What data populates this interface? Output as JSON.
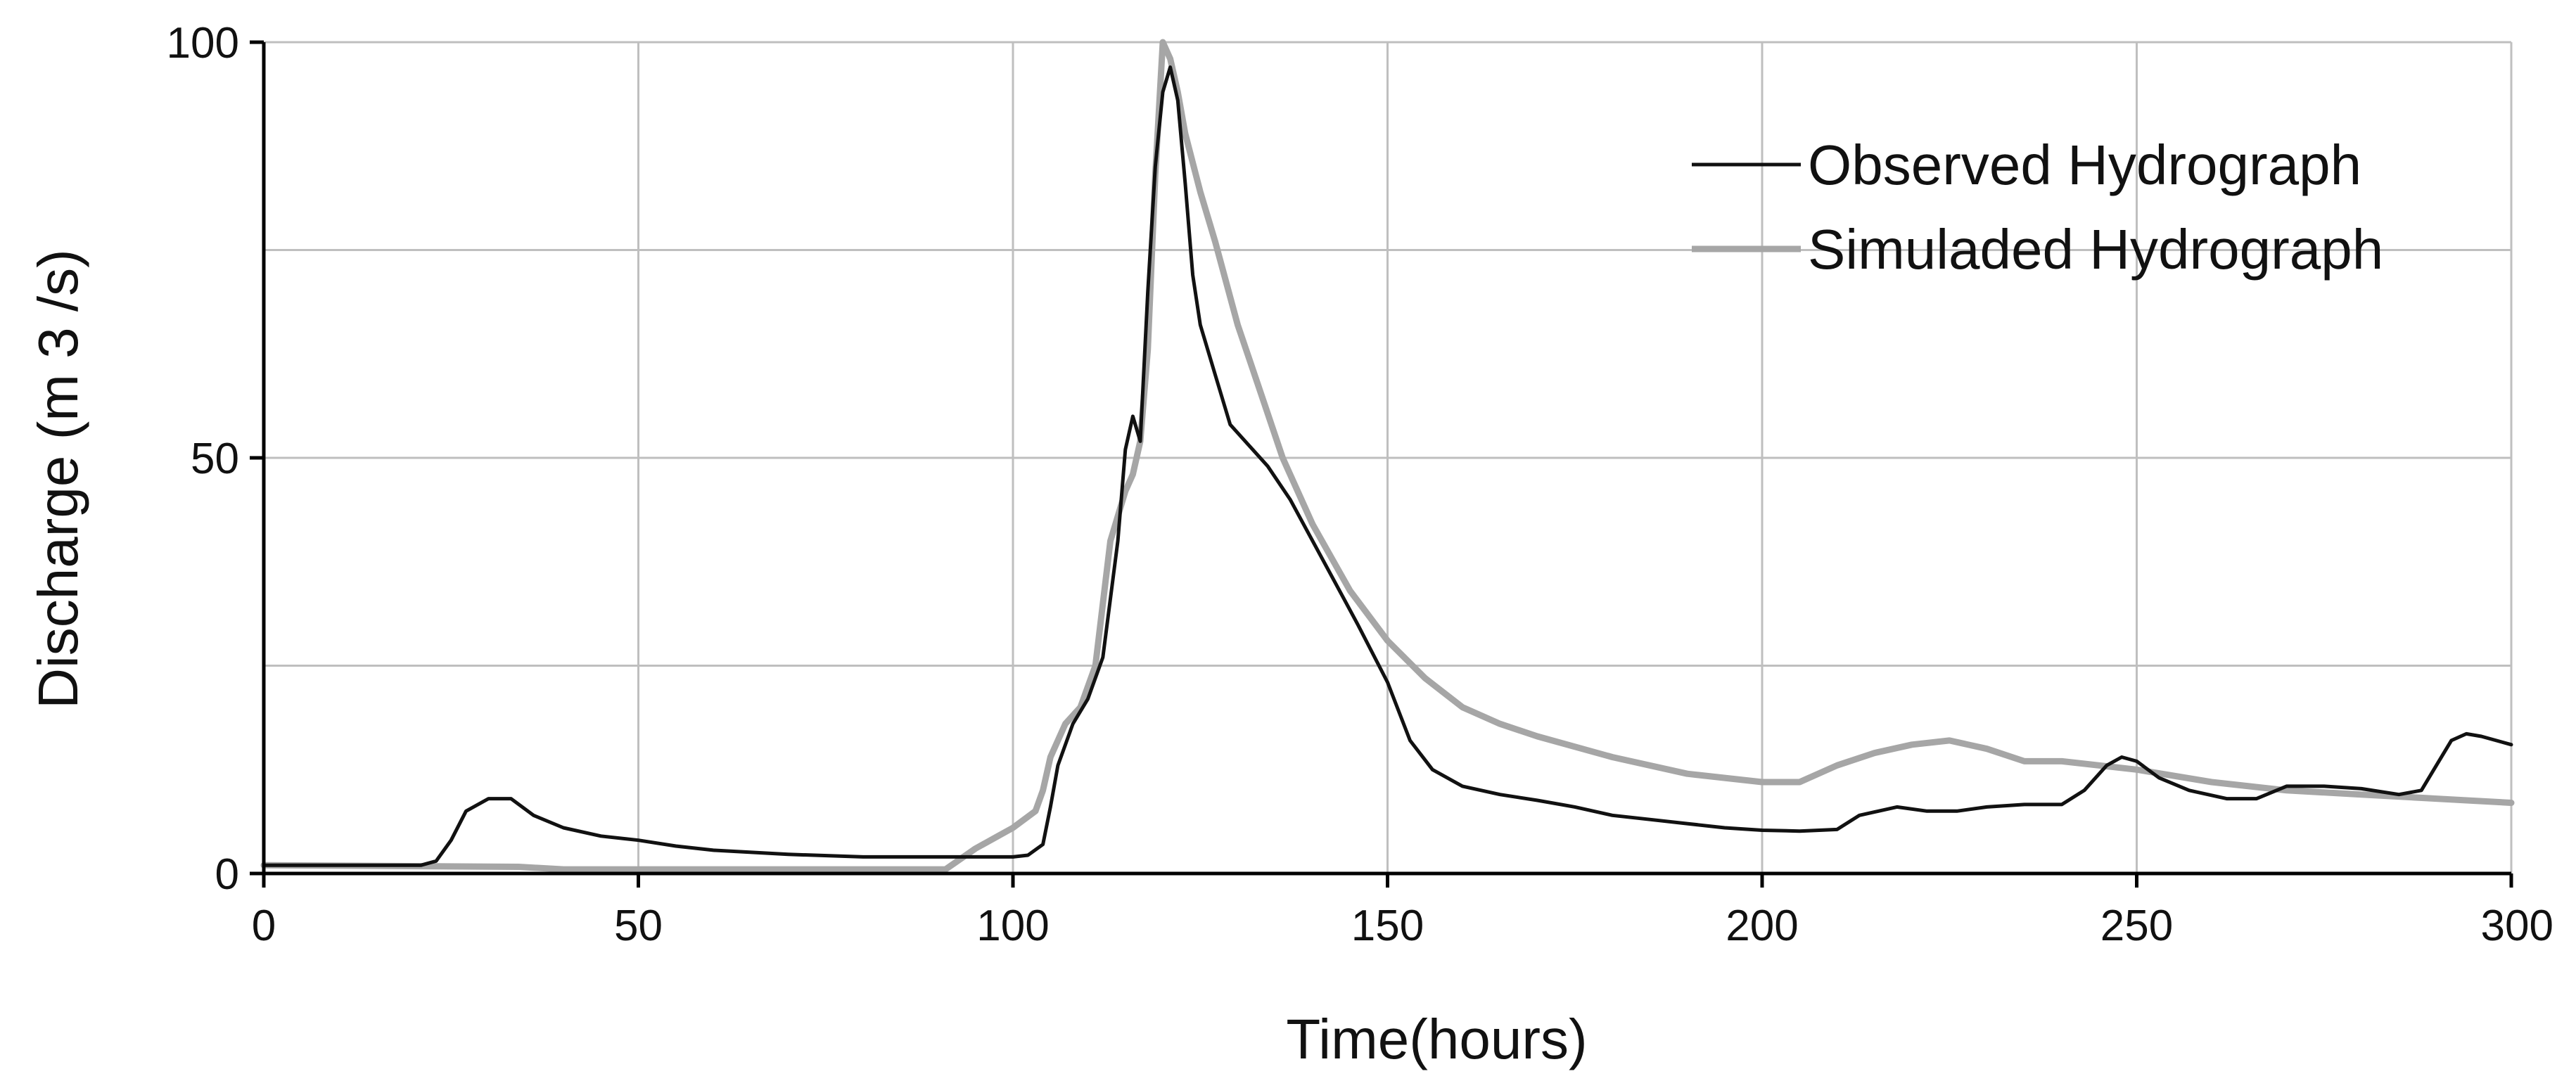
{
  "chart_data": {
    "type": "line",
    "title": "",
    "xlabel": "Time(hours)",
    "ylabel": "Discharge (m 3 /s)",
    "xlim": [
      0,
      300
    ],
    "ylim": [
      0,
      100
    ],
    "x_ticks": [
      "0",
      "50",
      "100",
      "150",
      "200",
      "250",
      "300"
    ],
    "y_ticks": [
      "0",
      "50",
      "100"
    ],
    "grid": true,
    "legend_position": "top-right",
    "series": [
      {
        "name": "Observed Hydrograph",
        "color": "#111111",
        "points": [
          [
            0,
            1
          ],
          [
            21,
            1
          ],
          [
            23,
            1.5
          ],
          [
            25,
            4
          ],
          [
            27,
            7.5
          ],
          [
            30,
            9
          ],
          [
            33,
            9
          ],
          [
            36,
            7
          ],
          [
            40,
            5.5
          ],
          [
            45,
            4.5
          ],
          [
            50,
            4
          ],
          [
            55,
            3.3
          ],
          [
            60,
            2.8
          ],
          [
            70,
            2.3
          ],
          [
            80,
            2
          ],
          [
            90,
            2
          ],
          [
            95,
            2
          ],
          [
            100,
            2
          ],
          [
            102,
            2.2
          ],
          [
            104,
            3.5
          ],
          [
            105,
            8
          ],
          [
            106,
            13
          ],
          [
            108,
            18
          ],
          [
            110,
            21
          ],
          [
            112,
            26
          ],
          [
            114,
            40
          ],
          [
            115,
            51
          ],
          [
            116,
            55
          ],
          [
            117,
            52
          ],
          [
            118,
            70
          ],
          [
            119,
            85
          ],
          [
            120,
            94
          ],
          [
            121,
            97
          ],
          [
            122,
            93
          ],
          [
            123,
            83
          ],
          [
            124,
            72
          ],
          [
            125,
            66
          ],
          [
            127,
            60
          ],
          [
            129,
            54
          ],
          [
            132,
            51
          ],
          [
            134,
            49
          ],
          [
            137,
            45
          ],
          [
            140,
            40
          ],
          [
            143,
            35
          ],
          [
            146,
            30
          ],
          [
            150,
            23
          ],
          [
            153,
            16
          ],
          [
            156,
            12.5
          ],
          [
            160,
            10.5
          ],
          [
            165,
            9.5
          ],
          [
            170,
            8.8
          ],
          [
            175,
            8
          ],
          [
            180,
            7
          ],
          [
            185,
            6.5
          ],
          [
            190,
            6
          ],
          [
            195,
            5.5
          ],
          [
            200,
            5.2
          ],
          [
            205,
            5.1
          ],
          [
            210,
            5.3
          ],
          [
            213,
            7
          ],
          [
            218,
            8
          ],
          [
            222,
            7.5
          ],
          [
            226,
            7.5
          ],
          [
            230,
            8
          ],
          [
            235,
            8.3
          ],
          [
            240,
            8.3
          ],
          [
            243,
            10
          ],
          [
            246,
            13
          ],
          [
            248,
            14
          ],
          [
            250,
            13.5
          ],
          [
            253,
            11.5
          ],
          [
            257,
            10
          ],
          [
            262,
            9
          ],
          [
            266,
            9
          ],
          [
            270,
            10.5
          ],
          [
            275,
            10.5
          ],
          [
            280,
            10.2
          ],
          [
            285,
            9.5
          ],
          [
            288,
            10
          ],
          [
            290,
            13
          ],
          [
            292,
            16
          ],
          [
            294,
            16.8
          ],
          [
            296,
            16.5
          ],
          [
            300,
            15.5
          ]
        ]
      },
      {
        "name": "Simuladed Hydrograph",
        "color": "#a6a6a6",
        "points": [
          [
            0,
            1
          ],
          [
            34,
            0.8
          ],
          [
            40,
            0.5
          ],
          [
            91,
            0.5
          ],
          [
            95,
            3
          ],
          [
            98,
            4.5
          ],
          [
            100,
            5.5
          ],
          [
            103,
            7.5
          ],
          [
            104,
            10
          ],
          [
            105,
            14
          ],
          [
            107,
            18
          ],
          [
            109,
            20
          ],
          [
            111,
            25
          ],
          [
            113,
            40
          ],
          [
            115,
            46
          ],
          [
            116,
            48
          ],
          [
            117,
            52
          ],
          [
            118,
            63
          ],
          [
            119,
            84
          ],
          [
            120,
            100
          ],
          [
            121,
            98
          ],
          [
            122,
            94
          ],
          [
            123,
            89
          ],
          [
            125,
            82
          ],
          [
            127,
            76
          ],
          [
            130,
            66
          ],
          [
            133,
            58
          ],
          [
            136,
            50
          ],
          [
            140,
            42
          ],
          [
            145,
            34
          ],
          [
            150,
            28
          ],
          [
            155,
            23.5
          ],
          [
            160,
            20
          ],
          [
            165,
            18
          ],
          [
            170,
            16.5
          ],
          [
            180,
            14
          ],
          [
            190,
            12
          ],
          [
            200,
            11
          ],
          [
            205,
            11
          ],
          [
            210,
            13
          ],
          [
            215,
            14.5
          ],
          [
            220,
            15.5
          ],
          [
            225,
            16
          ],
          [
            230,
            15
          ],
          [
            235,
            13.5
          ],
          [
            240,
            13.5
          ],
          [
            250,
            12.5
          ],
          [
            260,
            11
          ],
          [
            270,
            10
          ],
          [
            280,
            9.5
          ],
          [
            290,
            9
          ],
          [
            300,
            8.5
          ]
        ]
      }
    ]
  }
}
